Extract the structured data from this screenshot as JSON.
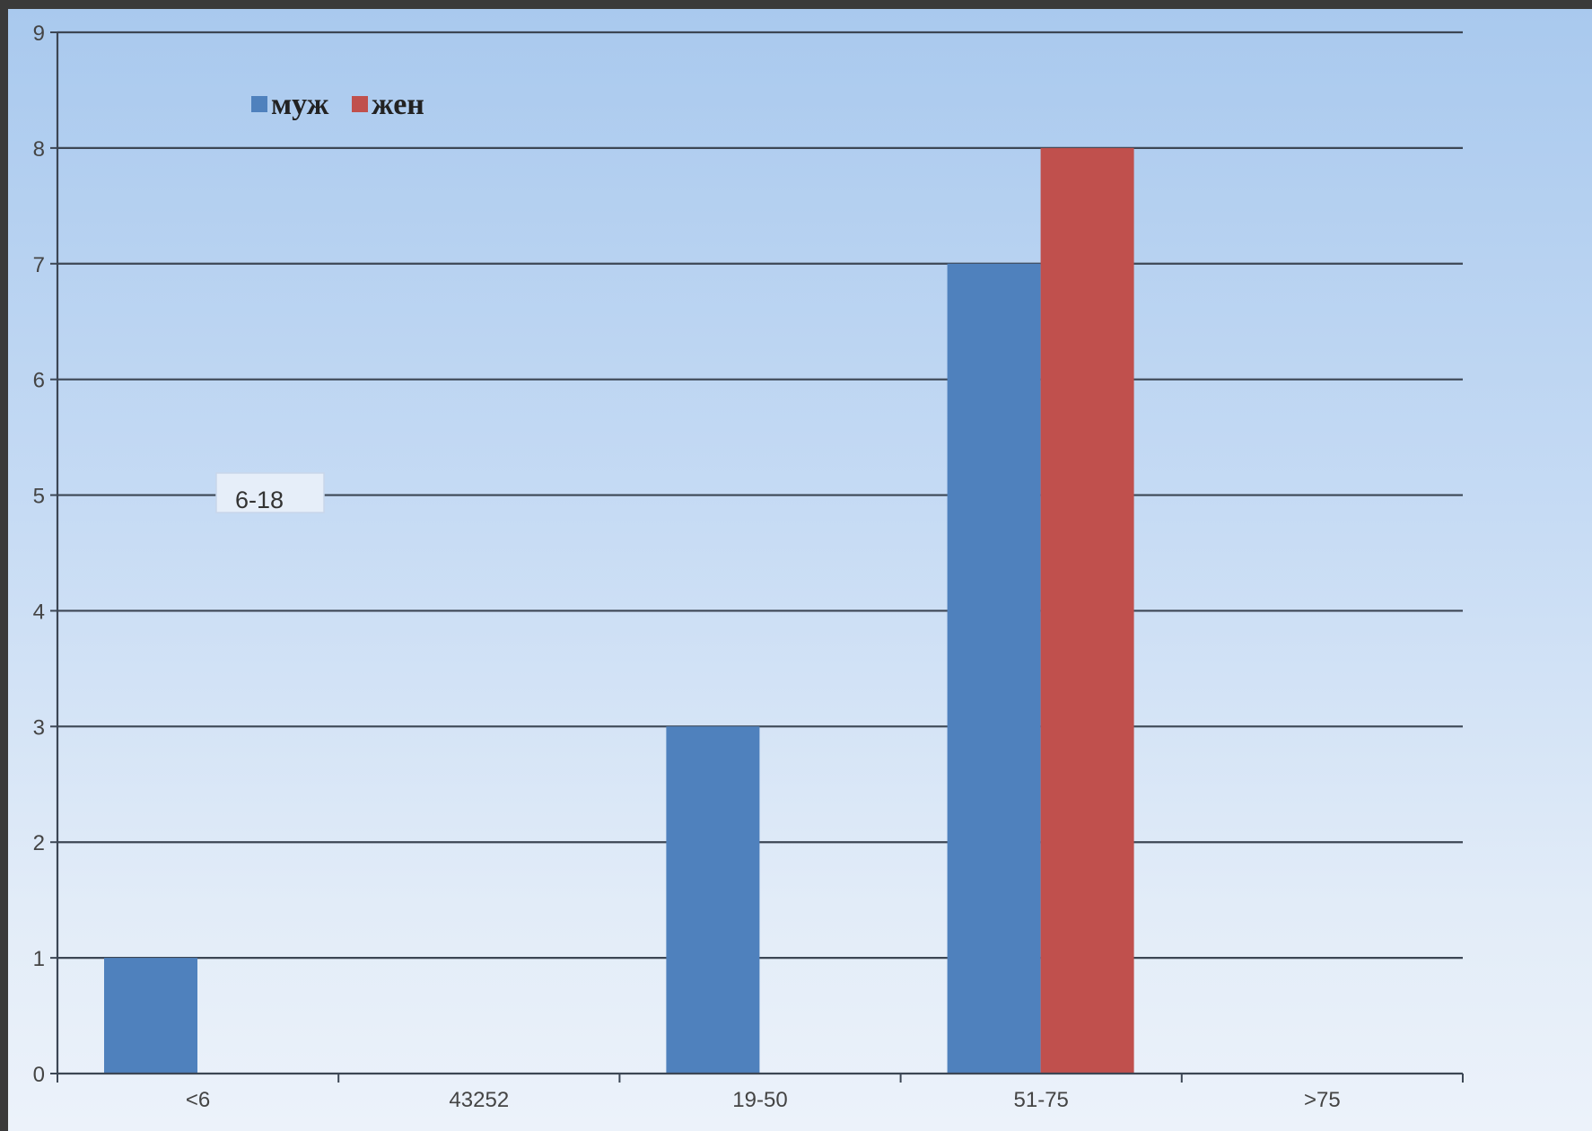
{
  "chart_data": {
    "type": "bar",
    "title": "",
    "xlabel": "",
    "ylabel": "",
    "categories": [
      "<6",
      "43252",
      "19-50",
      "51-75",
      ">75"
    ],
    "series": [
      {
        "name": "муж",
        "values": [
          1,
          0,
          3,
          7,
          0
        ],
        "color": "#4f81bd"
      },
      {
        "name": "жен",
        "values": [
          0,
          0,
          0,
          8,
          0
        ],
        "color": "#c0504d"
      }
    ],
    "ylim": [
      0,
      9
    ],
    "y_ticks": [
      "0",
      "1",
      "2",
      "3",
      "4",
      "5",
      "6",
      "7",
      "8",
      "9"
    ],
    "grid": true,
    "legend_position": "top-left",
    "annotation": "6-18"
  }
}
